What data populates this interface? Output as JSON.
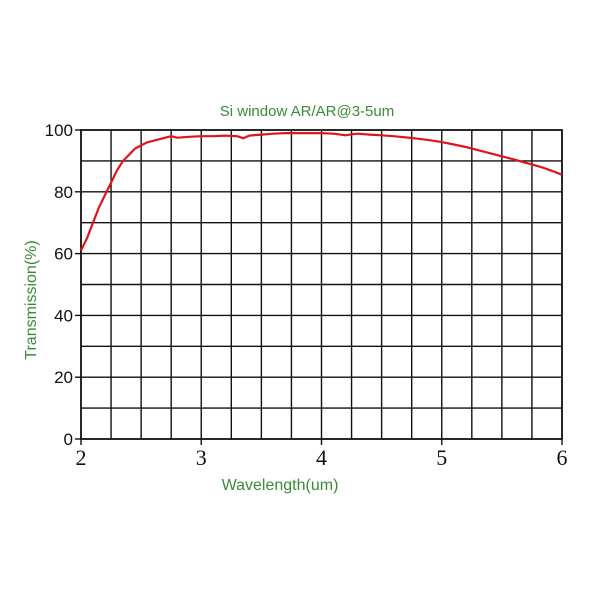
{
  "chart_data": {
    "type": "line",
    "title": "Si window AR/AR@3-5um",
    "xlabel": "Wavelength(um)",
    "ylabel": "Transmission(%)",
    "xlim": [
      2,
      6
    ],
    "ylim": [
      0,
      100
    ],
    "x_ticks": [
      "2",
      "3",
      "4",
      "5",
      "6"
    ],
    "y_ticks": [
      "0",
      "20",
      "40",
      "60",
      "80",
      "100"
    ],
    "grid": true,
    "grid_x_step": 0.25,
    "grid_y_step": 10,
    "color": "#e0141c",
    "series": [
      {
        "x": [
          2.0,
          2.05,
          2.1,
          2.15,
          2.2,
          2.25,
          2.3,
          2.35,
          2.4,
          2.45,
          2.5,
          2.55,
          2.6,
          2.65,
          2.7,
          2.75,
          2.8,
          2.9,
          3.0,
          3.1,
          3.2,
          3.3,
          3.35,
          3.4,
          3.5,
          3.6,
          3.7,
          3.8,
          3.9,
          4.0,
          4.1,
          4.2,
          4.25,
          4.3,
          4.4,
          4.5,
          4.6,
          4.7,
          4.8,
          4.9,
          5.0,
          5.1,
          5.2,
          5.3,
          5.4,
          5.5,
          5.6,
          5.7,
          5.8,
          5.85,
          5.9,
          5.95,
          6.0
        ],
        "y": [
          61,
          65,
          70,
          75,
          79,
          83,
          87,
          90,
          92,
          94,
          95,
          96,
          96.5,
          97,
          97.5,
          98,
          97.5,
          97.8,
          98,
          98,
          98.2,
          98,
          97.3,
          98.2,
          98.5,
          98.8,
          99,
          99,
          99,
          99,
          98.8,
          98.3,
          98.6,
          98.8,
          98.5,
          98.3,
          98,
          97.6,
          97.2,
          96.7,
          96.1,
          95.3,
          94.5,
          93.5,
          92.5,
          91.5,
          90.5,
          89.4,
          88.3,
          87.7,
          87,
          86.3,
          85.5
        ]
      }
    ]
  }
}
